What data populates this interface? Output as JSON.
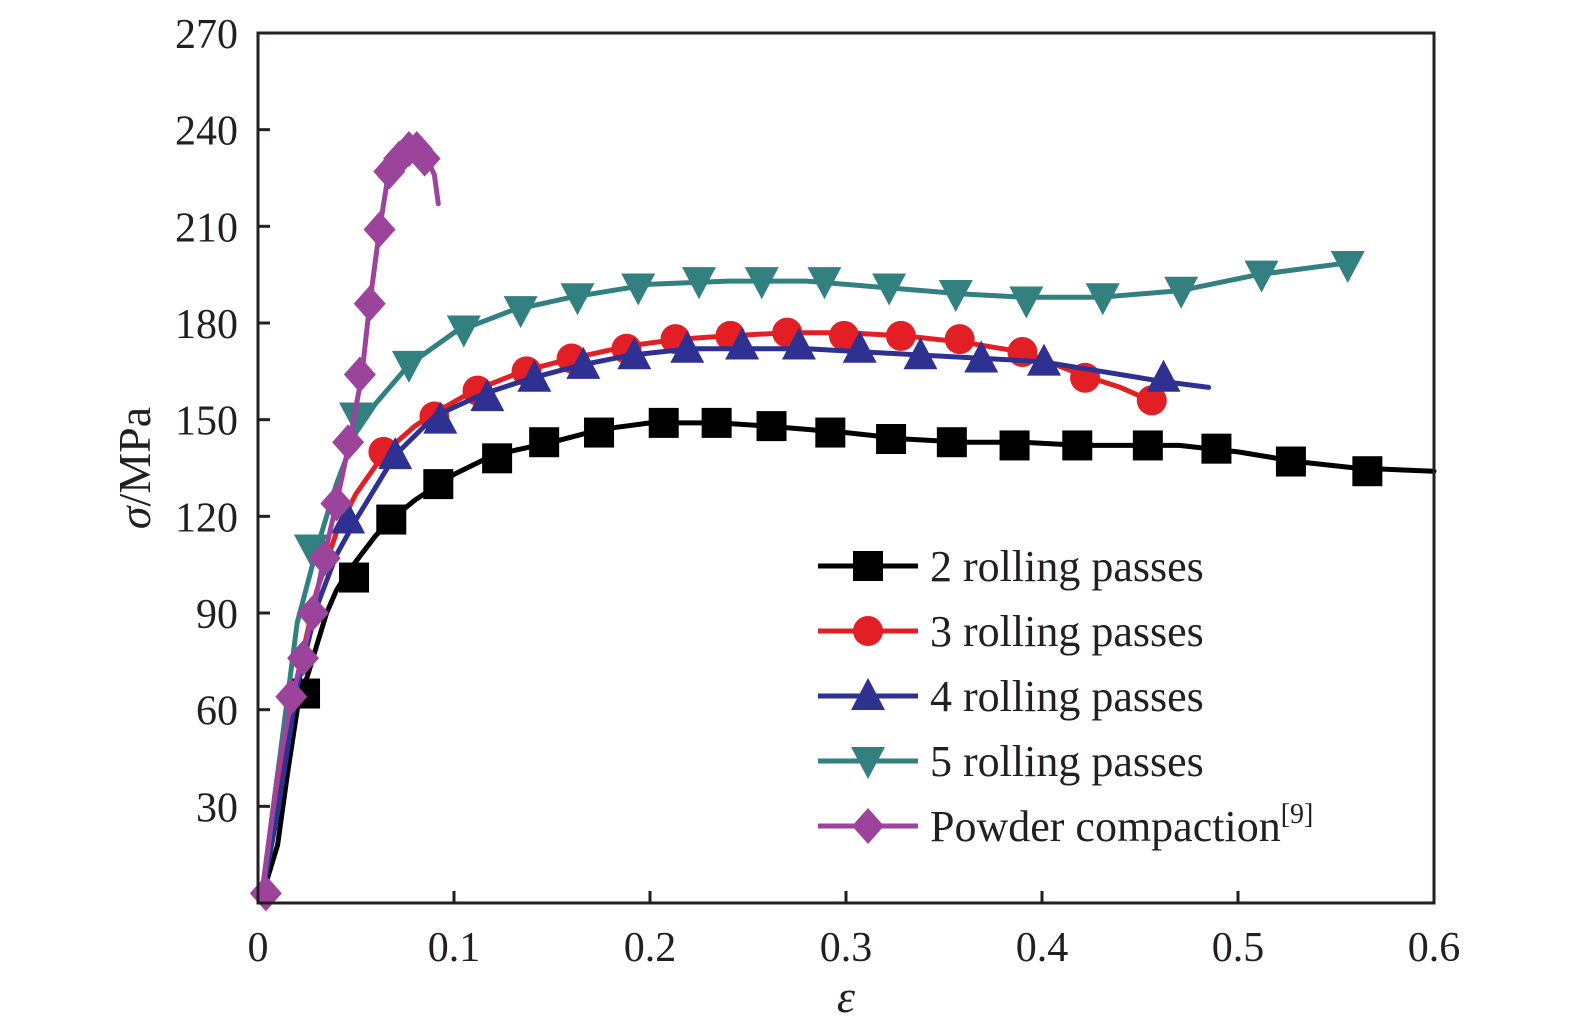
{
  "chart_data": {
    "type": "line",
    "xlabel": "ε",
    "ylabel_symbol": "σ",
    "ylabel_unit": "/MPa",
    "xlim": [
      0,
      0.6
    ],
    "ylim": [
      0,
      270
    ],
    "x_ticks": [
      {
        "value": 0,
        "label": "0"
      },
      {
        "value": 0.1,
        "label": "0.1"
      },
      {
        "value": 0.2,
        "label": "0.2"
      },
      {
        "value": 0.3,
        "label": "0.3"
      },
      {
        "value": 0.4,
        "label": "0.4"
      },
      {
        "value": 0.5,
        "label": "0.5"
      },
      {
        "value": 0.6,
        "label": "0.6"
      }
    ],
    "y_ticks": [
      {
        "value": 30,
        "label": "30"
      },
      {
        "value": 60,
        "label": "60"
      },
      {
        "value": 90,
        "label": "90"
      },
      {
        "value": 120,
        "label": "120"
      },
      {
        "value": 150,
        "label": "150"
      },
      {
        "value": 180,
        "label": "180"
      },
      {
        "value": 210,
        "label": "210"
      },
      {
        "value": 240,
        "label": "240"
      },
      {
        "value": 270,
        "label": "270"
      }
    ],
    "grid": false,
    "legend_position": "bottom-right",
    "series": [
      {
        "name": "2 rolling passes",
        "legend_label": "2 rolling passes",
        "color": "#000000",
        "marker": "square",
        "x": [
          0.002,
          0.01,
          0.015,
          0.02,
          0.025,
          0.03,
          0.035,
          0.04,
          0.045,
          0.05,
          0.06,
          0.07,
          0.08,
          0.09,
          0.1,
          0.12,
          0.15,
          0.175,
          0.2,
          0.235,
          0.26,
          0.3,
          0.33,
          0.36,
          0.39,
          0.42,
          0.45,
          0.47,
          0.5,
          0.53,
          0.56,
          0.6
        ],
        "y": [
          2,
          18,
          40,
          60,
          70,
          80,
          90,
          97,
          102,
          106,
          114,
          120,
          125,
          129,
          133,
          139,
          143,
          147,
          149,
          149,
          148,
          146,
          144,
          143,
          143,
          142,
          142,
          142,
          140,
          137,
          135,
          134
        ],
        "marker_x": [
          0.024,
          0.049,
          0.068,
          0.092,
          0.122,
          0.146,
          0.174,
          0.207,
          0.234,
          0.262,
          0.292,
          0.323,
          0.354,
          0.386,
          0.418,
          0.454,
          0.489,
          0.527,
          0.566
        ],
        "marker_y": [
          65,
          101,
          119,
          130,
          138,
          143,
          146,
          149,
          149,
          148,
          146,
          144,
          143,
          142,
          142,
          142,
          141,
          137,
          134
        ]
      },
      {
        "name": "3 rolling passes",
        "legend_label": "3 rolling passes",
        "color": "#e31f26",
        "marker": "circle",
        "x": [
          0.002,
          0.01,
          0.02,
          0.03,
          0.04,
          0.05,
          0.065,
          0.08,
          0.09,
          0.11,
          0.135,
          0.16,
          0.19,
          0.215,
          0.24,
          0.27,
          0.3,
          0.33,
          0.36,
          0.39,
          0.42,
          0.44,
          0.455
        ],
        "y": [
          2,
          30,
          70,
          97,
          115,
          127,
          140,
          148,
          152,
          159,
          165,
          169,
          173,
          175,
          176,
          177,
          177,
          176,
          174,
          171,
          164,
          160,
          156
        ],
        "marker_x": [
          0.064,
          0.09,
          0.112,
          0.137,
          0.16,
          0.188,
          0.213,
          0.241,
          0.27,
          0.299,
          0.328,
          0.358,
          0.39,
          0.422,
          0.456
        ],
        "marker_y": [
          140,
          151,
          159,
          165,
          169,
          172,
          175,
          176,
          177,
          176,
          176,
          175,
          171,
          163,
          156
        ]
      },
      {
        "name": "4 rolling passes",
        "legend_label": "4 rolling passes",
        "color": "#2e3192",
        "marker": "triangle-up",
        "x": [
          0.002,
          0.01,
          0.02,
          0.03,
          0.04,
          0.05,
          0.07,
          0.09,
          0.115,
          0.14,
          0.165,
          0.19,
          0.22,
          0.25,
          0.28,
          0.31,
          0.34,
          0.37,
          0.4,
          0.43,
          0.46,
          0.485
        ],
        "y": [
          2,
          28,
          67,
          92,
          108,
          119,
          139,
          151,
          158,
          163,
          167,
          170,
          172,
          172,
          172,
          171,
          170,
          169,
          168,
          165,
          162,
          160
        ],
        "marker_x": [
          0.046,
          0.07,
          0.093,
          0.117,
          0.141,
          0.166,
          0.192,
          0.219,
          0.247,
          0.276,
          0.307,
          0.338,
          0.369,
          0.401,
          0.462
        ],
        "marker_y": [
          119,
          139,
          150,
          157,
          163,
          167,
          170,
          172,
          173,
          173,
          172,
          170,
          169,
          168,
          163
        ]
      },
      {
        "name": "5 rolling passes",
        "legend_label": "5 rolling passes",
        "color": "#338080",
        "marker": "triangle-down",
        "x": [
          0.002,
          0.01,
          0.02,
          0.03,
          0.04,
          0.05,
          0.06,
          0.077,
          0.1,
          0.13,
          0.16,
          0.2,
          0.24,
          0.28,
          0.32,
          0.36,
          0.39,
          0.43,
          0.47,
          0.51,
          0.56
        ],
        "y": [
          2,
          40,
          87,
          110,
          130,
          146,
          155,
          167,
          177,
          184,
          188,
          192,
          193,
          193,
          191,
          189,
          188,
          188,
          190,
          195,
          199
        ],
        "marker_x": [
          0.027,
          0.05,
          0.077,
          0.105,
          0.134,
          0.163,
          0.194,
          0.225,
          0.257,
          0.289,
          0.322,
          0.356,
          0.392,
          0.431,
          0.471,
          0.512,
          0.556
        ],
        "marker_y": [
          110,
          151,
          167,
          178,
          184,
          188,
          191,
          193,
          193,
          193,
          191,
          189,
          187,
          188,
          190,
          195,
          198
        ]
      },
      {
        "name": "Powder compaction",
        "legend_label": "Powder compaction",
        "legend_sup": "[9]",
        "color": "#9c449b",
        "marker": "diamond",
        "x": [
          0.002,
          0.01,
          0.017,
          0.023,
          0.028,
          0.034,
          0.04,
          0.047,
          0.053,
          0.057,
          0.062,
          0.067,
          0.073,
          0.078,
          0.082,
          0.087,
          0.09,
          0.092
        ],
        "y": [
          3,
          40,
          63,
          77,
          90,
          108,
          124,
          144,
          164,
          186,
          209,
          228,
          232,
          234,
          233,
          230,
          226,
          217
        ],
        "marker_x": [
          0.004,
          0.017,
          0.023,
          0.028,
          0.034,
          0.04,
          0.046,
          0.052,
          0.057,
          0.062,
          0.067,
          0.072,
          0.077,
          0.081,
          0.085
        ],
        "marker_y": [
          3,
          64,
          76,
          90,
          107,
          124,
          143,
          164,
          186,
          209,
          227,
          231,
          234,
          234,
          231
        ]
      }
    ]
  }
}
